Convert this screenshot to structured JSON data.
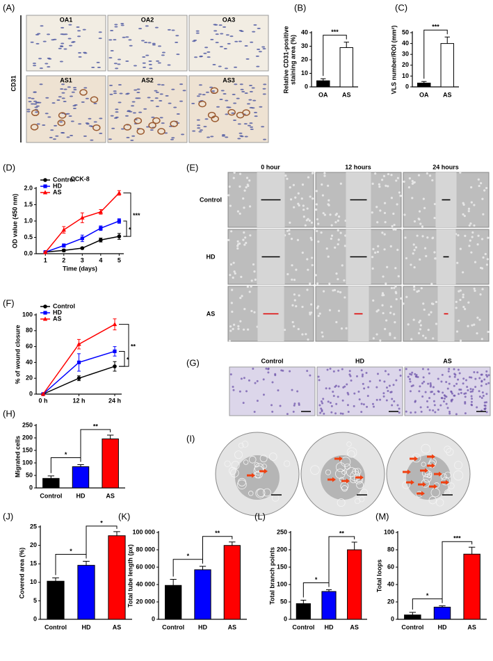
{
  "images": [
    {
      "panel": "(A)",
      "side_label": "CD31",
      "labels": [
        [
          "OA1",
          "OA2",
          "OA3"
        ],
        [
          "AS1",
          "AS2",
          "AS3"
        ]
      ]
    },
    {
      "panel": "(E)",
      "columns": [
        "0 hour",
        "12 hours",
        "24 hours"
      ],
      "rows": [
        "Control",
        "HD",
        "AS"
      ]
    },
    {
      "panel": "(G)",
      "columns": [
        "Control",
        "HD",
        "AS"
      ]
    },
    {
      "panel": "(I)",
      "columns": [
        "Control",
        "HD",
        "AS"
      ]
    }
  ],
  "chart_data": [
    {
      "panel": "(B)",
      "type": "bar",
      "categories": [
        "OA",
        "AS"
      ],
      "values": [
        4.5,
        29
      ],
      "errors": [
        1.5,
        4
      ],
      "colors": [
        "#000000",
        "#ffffff"
      ],
      "ylabel": [
        "Relative CD31-positive",
        "staining area (%)"
      ],
      "ylim": [
        0,
        40
      ],
      "yticks": [
        0,
        10,
        20,
        30,
        40
      ],
      "annotations": [
        "***"
      ]
    },
    {
      "panel": "(C)",
      "type": "bar",
      "categories": [
        "OA",
        "AS"
      ],
      "values": [
        3.5,
        40
      ],
      "errors": [
        1.5,
        6
      ],
      "colors": [
        "#000000",
        "#ffffff"
      ],
      "ylabel": [
        "VLS number/ROI (mm²)"
      ],
      "ylim": [
        0,
        50
      ],
      "yticks": [
        0,
        10,
        20,
        30,
        40,
        50
      ],
      "annotations": [
        "***"
      ]
    },
    {
      "panel": "(D)",
      "type": "line",
      "title": "CCK-8",
      "x": [
        1,
        2,
        3,
        4,
        5
      ],
      "xlim": [
        0.5,
        5.25
      ],
      "xticks": [
        1,
        2,
        3,
        4,
        5
      ],
      "xlabel": "Time (days)",
      "ylabel": [
        "OD value (450 nm)"
      ],
      "ylim": [
        0,
        2
      ],
      "legend": "upper left",
      "yticks": [
        {
          "value": 0,
          "label": "0.0"
        },
        0.5,
        {
          "value": 1,
          "label": "1.0"
        },
        1.5,
        {
          "value": 2,
          "label": "2.0"
        }
      ],
      "series": [
        {
          "name": "Control",
          "color": "#000000",
          "marker": "circle",
          "values": [
            0.05,
            0.1,
            0.17,
            0.42,
            0.53
          ],
          "errors": [
            0.01,
            0.04,
            0.03,
            0.06,
            0.09
          ]
        },
        {
          "name": "HD",
          "color": "#0000ff",
          "marker": "square",
          "values": [
            0.05,
            0.25,
            0.47,
            0.78,
            1.0
          ],
          "errors": [
            0.02,
            0.05,
            0.1,
            0.07,
            0.07
          ]
        },
        {
          "name": "AS",
          "color": "#ff0000",
          "marker": "triangle",
          "values": [
            0.04,
            0.73,
            1.1,
            1.28,
            1.86
          ],
          "errors": [
            0.02,
            0.1,
            0.15,
            0.07,
            0.07
          ]
        }
      ],
      "annotations": [
        "***",
        "*"
      ]
    },
    {
      "panel": "(F)",
      "type": "line",
      "categories": [
        "0 h",
        "12 h",
        "24 h"
      ],
      "ylabel": [
        "% of wound closure"
      ],
      "ylim": [
        0,
        100
      ],
      "yticks": [
        0,
        20,
        40,
        60,
        80,
        100
      ],
      "legend": "upper left",
      "series": [
        {
          "name": "Control",
          "color": "#000000",
          "marker": "circle",
          "values": [
            0,
            20,
            35
          ],
          "errors": [
            0,
            3,
            6
          ]
        },
        {
          "name": "HD",
          "color": "#0000ff",
          "marker": "square",
          "values": [
            0,
            40,
            54
          ],
          "errors": [
            0,
            11,
            6
          ]
        },
        {
          "name": "AS",
          "color": "#ff0000",
          "marker": "triangle",
          "values": [
            0,
            63,
            88
          ],
          "errors": [
            0,
            6,
            7
          ]
        }
      ],
      "annotations": [
        "**",
        "*"
      ]
    },
    {
      "panel": "(H)",
      "type": "bar",
      "categories": [
        "Control",
        "HD",
        "AS"
      ],
      "values": [
        38,
        85,
        196
      ],
      "errors": [
        10,
        8,
        15
      ],
      "colors": [
        "#000000",
        "#0000ff",
        "#ff0000"
      ],
      "ylabel": [
        "Migrated cells"
      ],
      "ylim": [
        0,
        250
      ],
      "yticks": [
        0,
        50,
        100,
        150,
        200,
        250
      ],
      "annotations": [
        "*",
        "**"
      ]
    },
    {
      "panel": "(J)",
      "type": "bar",
      "categories": [
        "Control",
        "HD",
        "AS"
      ],
      "values": [
        10.3,
        14.6,
        22.6
      ],
      "errors": [
        0.9,
        1.1,
        1.1
      ],
      "colors": [
        "#000000",
        "#0000ff",
        "#ff0000"
      ],
      "ylabel": [
        "Covered area (%)"
      ],
      "ylim": [
        0,
        25
      ],
      "yticks": [
        0,
        5,
        10,
        15,
        20,
        25
      ],
      "annotations": [
        "*",
        "*"
      ]
    },
    {
      "panel": "(K)",
      "type": "bar",
      "categories": [
        "Control",
        "HD",
        "AS"
      ],
      "values": [
        39000,
        57000,
        85000
      ],
      "errors": [
        7000,
        4000,
        4000
      ],
      "colors": [
        "#000000",
        "#0000ff",
        "#ff0000"
      ],
      "ylabel": [
        "Total tube length (px)"
      ],
      "ylim": [
        0,
        100000
      ],
      "yticks": [
        0,
        {
          "value": 20000,
          "label": "20 000"
        },
        {
          "value": 40000,
          "label": "40 000"
        },
        {
          "value": 60000,
          "label": "60 000"
        },
        {
          "value": 80000,
          "label": "80 000"
        },
        {
          "value": 100000,
          "label": "100 000"
        }
      ],
      "annotations": [
        "*",
        "**"
      ]
    },
    {
      "panel": "(L)",
      "type": "bar",
      "categories": [
        "Control",
        "HD",
        "AS"
      ],
      "values": [
        45,
        80,
        200
      ],
      "errors": [
        10,
        5,
        22
      ],
      "colors": [
        "#000000",
        "#0000ff",
        "#ff0000"
      ],
      "ylabel": [
        "Total branch points"
      ],
      "ylim": [
        0,
        250
      ],
      "yticks": [
        0,
        50,
        100,
        150,
        200,
        250
      ],
      "annotations": [
        "*",
        "**"
      ]
    },
    {
      "panel": "(M)",
      "type": "bar",
      "categories": [
        "Control",
        "HD",
        "AS"
      ],
      "values": [
        5,
        14,
        75
      ],
      "errors": [
        3,
        1.5,
        8
      ],
      "colors": [
        "#000000",
        "#0000ff",
        "#ff0000"
      ],
      "ylabel": [
        "Total loops"
      ],
      "ylim": [
        0,
        100
      ],
      "yticks": [
        0,
        20,
        40,
        60,
        80,
        100
      ],
      "annotations": [
        "*",
        "***"
      ]
    }
  ]
}
